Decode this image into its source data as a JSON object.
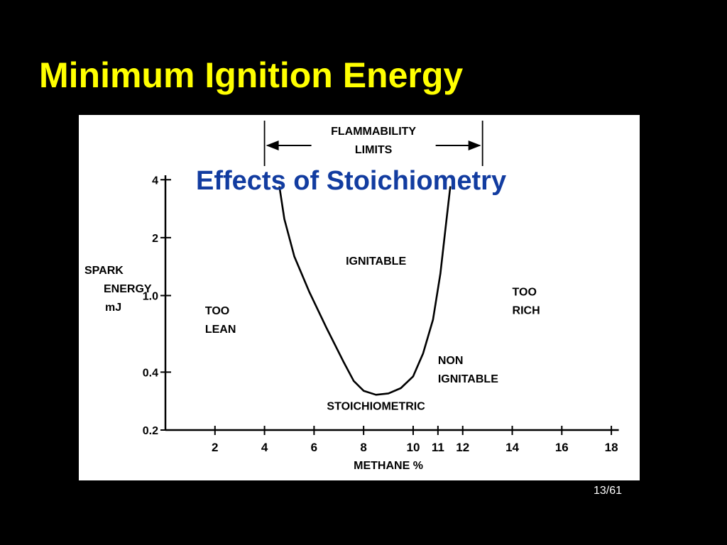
{
  "slide": {
    "title": "Minimum Ignition Energy",
    "page_number": "13/61",
    "background_color": "#000000",
    "title_color": "#ffff00",
    "heading_color": "#123ca0"
  },
  "chart_data": {
    "type": "line",
    "title": "Effects of Stoichiometry",
    "xlabel": "METHANE %",
    "ylabel": [
      "SPARK",
      "ENERGY",
      "mJ"
    ],
    "x_ticks": [
      2,
      4,
      6,
      8,
      10,
      11,
      12,
      14,
      16,
      18
    ],
    "x_tick_labels": [
      "2",
      "4",
      "6",
      "8",
      "10",
      "11",
      "12",
      "14",
      "16",
      "18"
    ],
    "y_ticks": [
      0.2,
      0.4,
      1.0,
      2,
      4
    ],
    "y_tick_labels": [
      "0.2",
      "0.4",
      "1.0",
      "2",
      "4"
    ],
    "xlim": [
      0,
      19
    ],
    "ylim": [
      0.2,
      5
    ],
    "y_scale": "log",
    "grid": false,
    "series": [
      {
        "x": [
          4.6,
          4.8,
          5.2,
          5.8,
          6.5,
          7.2,
          7.6,
          8.0,
          8.5,
          9.0,
          9.5,
          10.0,
          10.4,
          10.8,
          11.1,
          11.3,
          11.5
        ],
        "y": [
          3.7,
          2.5,
          1.6,
          1.05,
          0.68,
          0.45,
          0.36,
          0.32,
          0.305,
          0.31,
          0.33,
          0.38,
          0.5,
          0.75,
          1.3,
          2.2,
          3.7
        ]
      }
    ],
    "flammability_limits": {
      "label": [
        "FLAMMABILITY",
        "LIMITS"
      ],
      "x_range": [
        4.0,
        12.8
      ]
    },
    "annotations": [
      {
        "lines": [
          "IGNITABLE"
        ],
        "x": 8.5,
        "y": 1.45
      },
      {
        "lines": [
          "TOO",
          "LEAN"
        ],
        "x": 1.6,
        "y": 0.8
      },
      {
        "lines": [
          "TOO",
          "RICH"
        ],
        "x": 14.0,
        "y": 1.0
      },
      {
        "lines": [
          "NON",
          "IGNITABLE"
        ],
        "x": 11.0,
        "y": 0.44
      },
      {
        "lines": [
          "STOICHIOMETRIC"
        ],
        "x": 8.5,
        "y": 0.255
      }
    ]
  }
}
